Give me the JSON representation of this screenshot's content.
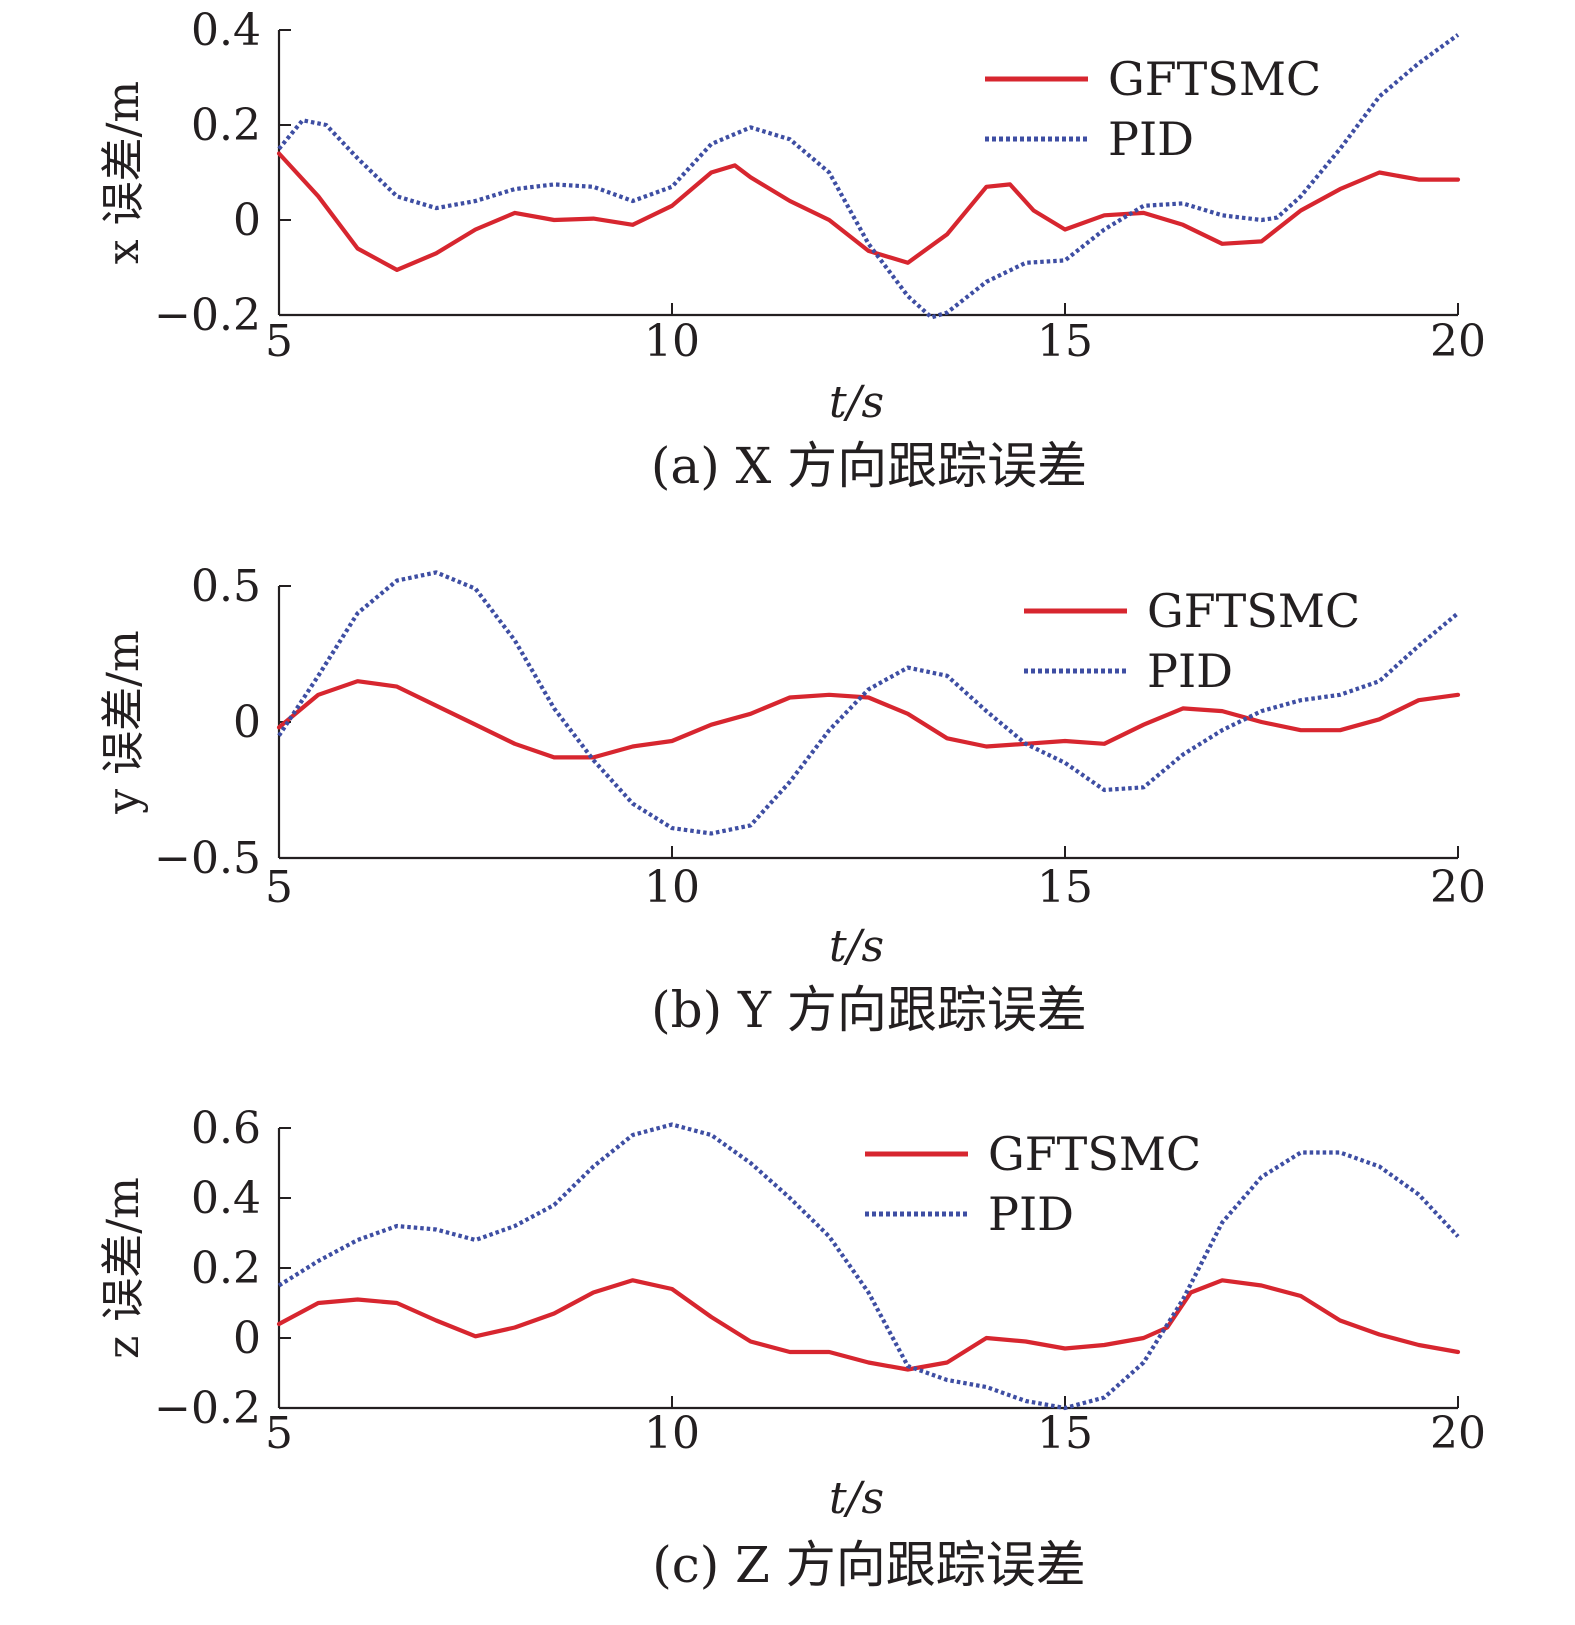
{
  "colors": {
    "gftsmc": "#d7262f",
    "pid": "#3e4ea3",
    "axis": "#231f20",
    "background": "#ffffff"
  },
  "chart_data": [
    {
      "type": "line",
      "panel": "a",
      "caption": "(a) X 方向跟踪误差",
      "ylabel": "x 误差/m",
      "xlabel": "t/s",
      "xlim": [
        5,
        20
      ],
      "ylim": [
        -0.2,
        0.4
      ],
      "xticks": [
        5,
        10,
        15,
        20
      ],
      "xtick_labels": [
        "5",
        "10",
        "15",
        "20"
      ],
      "yticks": [
        -0.2,
        0,
        0.2,
        0.4
      ],
      "ytick_labels": [
        "−0.2",
        "0",
        "0.2",
        "0.4"
      ],
      "legend": [
        "GFTSMC",
        "PID"
      ],
      "legend_position": "top-right",
      "series": [
        {
          "name": "GFTSMC",
          "style": "solid",
          "x": [
            5,
            5.5,
            6,
            6.5,
            7,
            7.5,
            8,
            8.5,
            9,
            9.5,
            10,
            10.5,
            10.8,
            11,
            11.5,
            12,
            12.5,
            13,
            13.5,
            14,
            14.3,
            14.6,
            15,
            15.5,
            16,
            16.5,
            17,
            17.5,
            18,
            18.5,
            19,
            19.5,
            20
          ],
          "y": [
            0.14,
            0.05,
            -0.06,
            -0.105,
            -0.07,
            -0.02,
            0.015,
            0.0,
            0.003,
            -0.01,
            0.03,
            0.1,
            0.115,
            0.09,
            0.04,
            0.0,
            -0.065,
            -0.09,
            -0.03,
            0.07,
            0.075,
            0.02,
            -0.02,
            0.01,
            0.015,
            -0.01,
            -0.05,
            -0.045,
            0.02,
            0.065,
            0.1,
            0.085,
            0.085
          ]
        },
        {
          "name": "PID",
          "style": "dotted",
          "x": [
            5,
            5.3,
            5.6,
            6,
            6.5,
            7,
            7.5,
            8,
            8.5,
            9,
            9.5,
            10,
            10.5,
            11,
            11.5,
            12,
            12.5,
            13,
            13.3,
            13.5,
            14,
            14.5,
            15,
            15.5,
            16,
            16.5,
            17,
            17.5,
            17.7,
            18,
            18.5,
            19,
            19.5,
            20
          ],
          "y": [
            0.15,
            0.21,
            0.2,
            0.13,
            0.05,
            0.025,
            0.04,
            0.065,
            0.075,
            0.07,
            0.04,
            0.07,
            0.16,
            0.195,
            0.17,
            0.1,
            -0.05,
            -0.16,
            -0.205,
            -0.195,
            -0.13,
            -0.09,
            -0.085,
            -0.02,
            0.03,
            0.035,
            0.01,
            0.0,
            0.005,
            0.05,
            0.15,
            0.26,
            0.33,
            0.39
          ]
        }
      ]
    },
    {
      "type": "line",
      "panel": "b",
      "caption": "(b) Y 方向跟踪误差",
      "ylabel": "y 误差/m",
      "xlabel": "t/s",
      "xlim": [
        5,
        20
      ],
      "ylim": [
        -0.5,
        0.5
      ],
      "xticks": [
        5,
        10,
        15,
        20
      ],
      "xtick_labels": [
        "5",
        "10",
        "15",
        "20"
      ],
      "yticks": [
        -0.5,
        0,
        0.5
      ],
      "ytick_labels": [
        "−0.5",
        "0",
        "0.5"
      ],
      "legend": [
        "GFTSMC",
        "PID"
      ],
      "legend_position": "top-right",
      "series": [
        {
          "name": "GFTSMC",
          "style": "solid",
          "x": [
            5,
            5.5,
            6,
            6.5,
            7,
            7.5,
            8,
            8.5,
            9,
            9.5,
            10,
            10.5,
            11,
            11.5,
            12,
            12.5,
            13,
            13.5,
            14,
            14.5,
            15,
            15.5,
            16,
            16.5,
            17,
            17.5,
            18,
            18.5,
            19,
            19.5,
            20
          ],
          "y": [
            -0.02,
            0.1,
            0.15,
            0.13,
            0.06,
            -0.01,
            -0.08,
            -0.13,
            -0.13,
            -0.09,
            -0.07,
            -0.01,
            0.03,
            0.09,
            0.1,
            0.09,
            0.03,
            -0.06,
            -0.09,
            -0.08,
            -0.07,
            -0.08,
            -0.01,
            0.05,
            0.04,
            0.0,
            -0.03,
            -0.03,
            0.01,
            0.08,
            0.1
          ]
        },
        {
          "name": "PID",
          "style": "dotted",
          "x": [
            5,
            5.5,
            6,
            6.5,
            7,
            7.5,
            8,
            8.5,
            9,
            9.5,
            10,
            10.5,
            11,
            11.5,
            12,
            12.5,
            13,
            13.5,
            14,
            14.5,
            15,
            15.5,
            16,
            16.5,
            17,
            17.5,
            18,
            18.5,
            19,
            19.5,
            20
          ],
          "y": [
            -0.05,
            0.17,
            0.4,
            0.52,
            0.55,
            0.49,
            0.3,
            0.05,
            -0.14,
            -0.3,
            -0.39,
            -0.41,
            -0.38,
            -0.22,
            -0.03,
            0.12,
            0.2,
            0.17,
            0.04,
            -0.08,
            -0.15,
            -0.25,
            -0.24,
            -0.12,
            -0.03,
            0.04,
            0.08,
            0.1,
            0.15,
            0.28,
            0.4
          ]
        }
      ]
    },
    {
      "type": "line",
      "panel": "c",
      "caption": "(c) Z 方向跟踪误差",
      "ylabel": "z 误差/m",
      "xlabel": "t/s",
      "xlim": [
        5,
        20
      ],
      "ylim": [
        -0.2,
        0.6
      ],
      "xticks": [
        5,
        10,
        15,
        20
      ],
      "xtick_labels": [
        "5",
        "10",
        "15",
        "20"
      ],
      "yticks": [
        -0.2,
        0,
        0.2,
        0.4,
        0.6
      ],
      "ytick_labels": [
        "−0.2",
        "0",
        "0.2",
        "0.4",
        "0.6"
      ],
      "legend": [
        "GFTSMC",
        "PID"
      ],
      "legend_position": "top-right",
      "series": [
        {
          "name": "GFTSMC",
          "style": "solid",
          "x": [
            5,
            5.5,
            6,
            6.5,
            7,
            7.5,
            8,
            8.5,
            9,
            9.5,
            10,
            10.5,
            11,
            11.5,
            12,
            12.5,
            13,
            13.5,
            14,
            14.5,
            15,
            15.5,
            16,
            16.3,
            16.6,
            17,
            17.5,
            18,
            18.5,
            19,
            19.5,
            20
          ],
          "y": [
            0.04,
            0.1,
            0.11,
            0.1,
            0.05,
            0.005,
            0.03,
            0.07,
            0.13,
            0.165,
            0.14,
            0.06,
            -0.01,
            -0.04,
            -0.04,
            -0.07,
            -0.09,
            -0.07,
            0.0,
            -0.01,
            -0.03,
            -0.02,
            0.0,
            0.03,
            0.13,
            0.165,
            0.15,
            0.12,
            0.05,
            0.01,
            -0.02,
            -0.04
          ]
        },
        {
          "name": "PID",
          "style": "dotted",
          "x": [
            5,
            5.5,
            6,
            6.5,
            7,
            7.5,
            8,
            8.5,
            9,
            9.5,
            10,
            10.5,
            11,
            11.5,
            12,
            12.5,
            13,
            13.5,
            14,
            14.5,
            15,
            15.5,
            16,
            16.5,
            17,
            17.5,
            18,
            18.5,
            19,
            19.5,
            20
          ],
          "y": [
            0.15,
            0.22,
            0.28,
            0.32,
            0.31,
            0.28,
            0.32,
            0.38,
            0.49,
            0.58,
            0.61,
            0.58,
            0.5,
            0.4,
            0.29,
            0.13,
            -0.08,
            -0.12,
            -0.14,
            -0.18,
            -0.2,
            -0.17,
            -0.07,
            0.11,
            0.33,
            0.46,
            0.53,
            0.53,
            0.49,
            0.41,
            0.29
          ]
        }
      ]
    }
  ]
}
